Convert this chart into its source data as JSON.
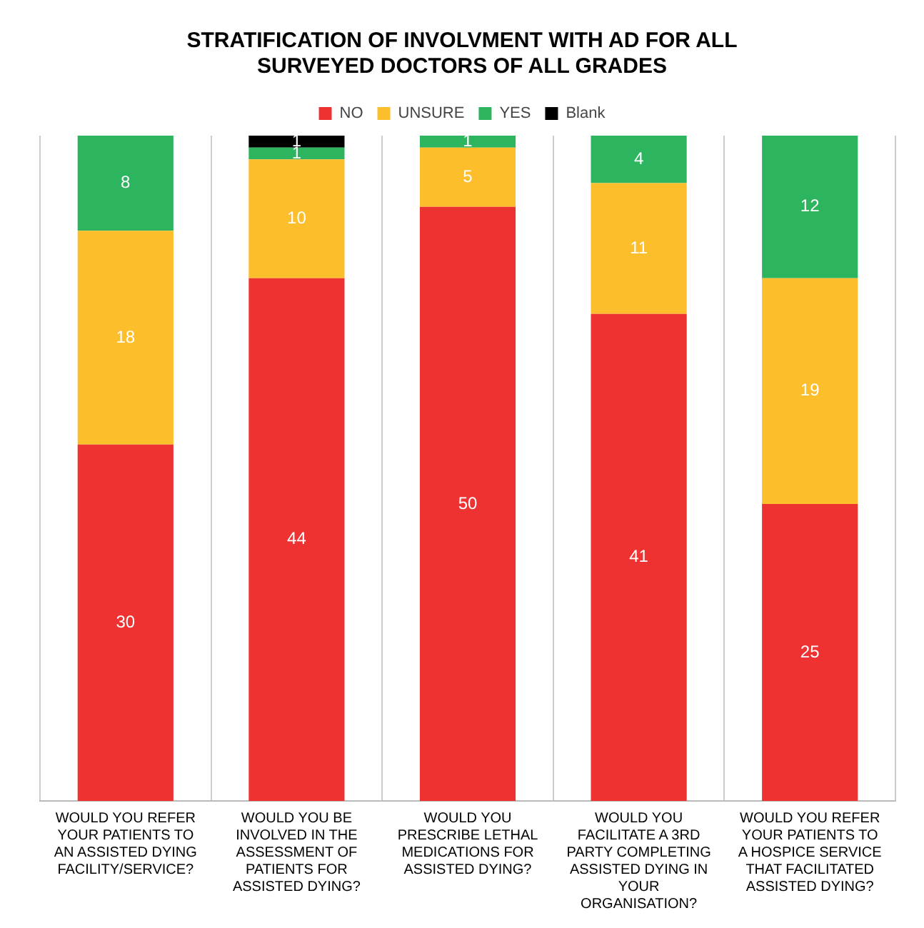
{
  "chart_data": {
    "type": "bar",
    "title": "STRATIFICATION OF INVOLVMENT WITH AD FOR ALL SURVEYED DOCTORS OF ALL GRADES",
    "categories": [
      "WOULD YOU REFER YOUR PATIENTS TO AN ASSISTED DYING FACILITY/SERVICE?",
      "WOULD YOU BE INVOLVED IN THE ASSESSMENT OF PATIENTS FOR ASSISTED DYING?",
      "WOULD YOU PRESCRIBE LETHAL MEDICATIONS FOR ASSISTED DYING?",
      "WOULD YOU FACILITATE A 3RD PARTY COMPLETING ASSISTED DYING IN YOUR ORGANISATION?",
      "WOULD YOU REFER YOUR PATIENTS TO A HOSPICE SERVICE THAT FACILITATED ASSISTED DYING?"
    ],
    "series": [
      {
        "name": "NO",
        "color": "#ee3131",
        "values": [
          30,
          44,
          50,
          41,
          25
        ]
      },
      {
        "name": "UNSURE",
        "color": "#fdbe2c",
        "values": [
          18,
          10,
          5,
          11,
          19
        ]
      },
      {
        "name": "YES",
        "color": "#2cb45f",
        "values": [
          8,
          1,
          1,
          4,
          12
        ]
      },
      {
        "name": "Blank",
        "color": "#000000",
        "values": [
          null,
          1,
          null,
          null,
          null
        ]
      }
    ],
    "stacked": true,
    "data_labels": true,
    "ylim": [
      0,
      56
    ],
    "tick_labels": "x",
    "grid": "x",
    "legend": "top"
  }
}
